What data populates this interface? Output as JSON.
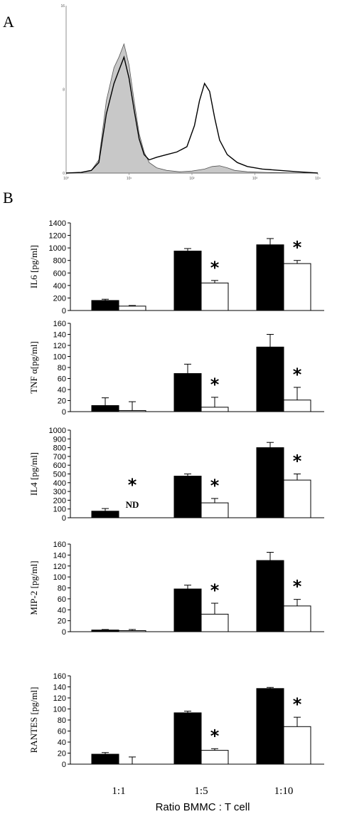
{
  "panel_a_label": "A",
  "panel_b_label": "B",
  "histogram": {
    "type": "area",
    "x_ticks": [
      "10⁰",
      "10¹",
      "10²",
      "10³",
      "10⁴"
    ],
    "y_ticks": [
      "0",
      "8",
      "16"
    ],
    "series": [
      {
        "fill": "#c8c8c8",
        "points": [
          [
            0.0,
            0
          ],
          [
            0.06,
            0.5
          ],
          [
            0.1,
            2
          ],
          [
            0.13,
            10
          ],
          [
            0.16,
            55
          ],
          [
            0.19,
            80
          ],
          [
            0.21,
            88
          ],
          [
            0.23,
            98
          ],
          [
            0.25,
            82
          ],
          [
            0.27,
            55
          ],
          [
            0.29,
            30
          ],
          [
            0.31,
            16
          ],
          [
            0.33,
            8
          ],
          [
            0.36,
            4
          ],
          [
            0.4,
            2
          ],
          [
            0.45,
            1
          ],
          [
            0.5,
            1.5
          ],
          [
            0.55,
            3
          ],
          [
            0.58,
            5
          ],
          [
            0.61,
            5.5
          ],
          [
            0.64,
            4
          ],
          [
            0.67,
            2
          ],
          [
            0.72,
            1
          ],
          [
            0.8,
            0.5
          ],
          [
            0.9,
            0.2
          ],
          [
            1.0,
            0
          ]
        ]
      },
      {
        "points": [
          [
            0.0,
            0
          ],
          [
            0.06,
            0.5
          ],
          [
            0.1,
            2
          ],
          [
            0.13,
            8
          ],
          [
            0.16,
            45
          ],
          [
            0.19,
            68
          ],
          [
            0.21,
            78
          ],
          [
            0.23,
            88
          ],
          [
            0.25,
            72
          ],
          [
            0.27,
            48
          ],
          [
            0.29,
            26
          ],
          [
            0.31,
            14
          ],
          [
            0.33,
            10
          ],
          [
            0.36,
            12
          ],
          [
            0.4,
            14
          ],
          [
            0.44,
            16
          ],
          [
            0.48,
            20
          ],
          [
            0.51,
            36
          ],
          [
            0.53,
            55
          ],
          [
            0.55,
            68
          ],
          [
            0.57,
            62
          ],
          [
            0.59,
            42
          ],
          [
            0.61,
            25
          ],
          [
            0.64,
            14
          ],
          [
            0.68,
            8
          ],
          [
            0.72,
            5
          ],
          [
            0.78,
            3
          ],
          [
            0.85,
            2
          ],
          [
            0.92,
            1
          ],
          [
            1.0,
            0
          ]
        ]
      }
    ]
  },
  "chart_data": [
    {
      "type": "bar",
      "ylabel": "IL6 [pg/ml]",
      "ylim": [
        0,
        1400
      ],
      "yticks": [
        0,
        200,
        400,
        600,
        800,
        1000,
        1200,
        1400
      ],
      "categories": [
        "1:1",
        "1:5",
        "1:10"
      ],
      "series": [
        {
          "color": "#000000",
          "values": [
            160,
            950,
            1050
          ],
          "errors": [
            20,
            40,
            100
          ]
        },
        {
          "color": "#ffffff",
          "values": [
            70,
            440,
            750
          ],
          "errors": [
            10,
            40,
            50
          ]
        }
      ],
      "annotations": [
        "",
        "*",
        "*"
      ]
    },
    {
      "type": "bar",
      "ylabel": "TNF α[pg/ml]",
      "ylim": [
        0,
        160
      ],
      "yticks": [
        0,
        20,
        40,
        60,
        80,
        100,
        120,
        140,
        160
      ],
      "categories": [
        "1:1",
        "1:5",
        "1:10"
      ],
      "series": [
        {
          "color": "#000000",
          "values": [
            11,
            69,
            117
          ],
          "errors": [
            14,
            17,
            23
          ]
        },
        {
          "color": "#ffffff",
          "values": [
            2,
            8,
            21
          ],
          "errors": [
            16,
            18,
            23
          ]
        }
      ],
      "annotations": [
        "",
        "*",
        "*"
      ]
    },
    {
      "type": "bar",
      "ylabel": "IL4 [pg/ml]",
      "ylim": [
        0,
        1000
      ],
      "yticks": [
        0,
        100,
        200,
        300,
        400,
        500,
        600,
        700,
        800,
        900,
        1000
      ],
      "categories": [
        "1:1",
        "1:5",
        "1:10"
      ],
      "series": [
        {
          "color": "#000000",
          "values": [
            75,
            475,
            800
          ],
          "errors": [
            30,
            25,
            60
          ]
        },
        {
          "color": "#ffffff",
          "values": [
            null,
            170,
            430
          ],
          "errors": [
            0,
            50,
            70
          ]
        }
      ],
      "annotations": [
        "*",
        "*",
        "*"
      ],
      "missing_label": "ND"
    },
    {
      "type": "bar",
      "ylabel": "MIP-2 [pg/ml]",
      "ylim": [
        0,
        160
      ],
      "yticks": [
        0,
        20,
        40,
        60,
        80,
        100,
        120,
        140,
        160
      ],
      "categories": [
        "1:1",
        "1:5",
        "1:10"
      ],
      "series": [
        {
          "color": "#000000",
          "values": [
            3,
            78,
            130
          ],
          "errors": [
            1,
            7,
            15
          ]
        },
        {
          "color": "#ffffff",
          "values": [
            2,
            32,
            47
          ],
          "errors": [
            2,
            20,
            12
          ]
        }
      ],
      "annotations": [
        "",
        "*",
        "*"
      ]
    },
    {
      "type": "bar",
      "ylabel": "RANTES [pg/ml]",
      "ylim": [
        0,
        160
      ],
      "yticks": [
        0,
        20,
        40,
        60,
        80,
        100,
        120,
        140,
        160
      ],
      "categories": [
        "1:1",
        "1:5",
        "1:10"
      ],
      "series": [
        {
          "color": "#000000",
          "values": [
            18,
            93,
            137
          ],
          "errors": [
            3,
            3,
            2
          ]
        },
        {
          "color": "#ffffff",
          "values": [
            0,
            25,
            68
          ],
          "errors": [
            13,
            3,
            17
          ]
        }
      ],
      "annotations": [
        "",
        "*",
        "*"
      ]
    }
  ],
  "x_categories": [
    "1:1",
    "1:5",
    "1:10"
  ],
  "x_title": "Ratio BMMC : T cell"
}
